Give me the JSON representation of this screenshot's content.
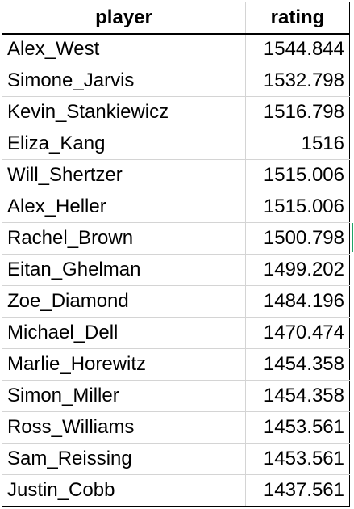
{
  "sheet": {
    "headers": {
      "player": "player",
      "rating": "rating"
    },
    "rows": [
      {
        "player": "Alex_West",
        "rating": "1544.844"
      },
      {
        "player": "Simone_Jarvis",
        "rating": "1532.798"
      },
      {
        "player": "Kevin_Stankiewicz",
        "rating": "1516.798"
      },
      {
        "player": "Eliza_Kang",
        "rating": "1516"
      },
      {
        "player": "Will_Shertzer",
        "rating": "1515.006"
      },
      {
        "player": "Alex_Heller",
        "rating": "1515.006"
      },
      {
        "player": "Rachel_Brown",
        "rating": "1500.798"
      },
      {
        "player": "Eitan_Ghelman",
        "rating": "1499.202"
      },
      {
        "player": "Zoe_Diamond",
        "rating": "1484.196"
      },
      {
        "player": "Michael_Dell",
        "rating": "1470.474"
      },
      {
        "player": "Marlie_Horewitz",
        "rating": "1454.358"
      },
      {
        "player": "Simon_Miller",
        "rating": "1454.358"
      },
      {
        "player": "Ross_Williams",
        "rating": "1453.561"
      },
      {
        "player": "Sam_Reissing",
        "rating": "1453.561"
      },
      {
        "player": "Justin_Cobb",
        "rating": "1437.561"
      }
    ],
    "colors": {
      "border": "#000000",
      "gridline": "#d4d4d4",
      "selection_accent": "#21a366"
    }
  }
}
